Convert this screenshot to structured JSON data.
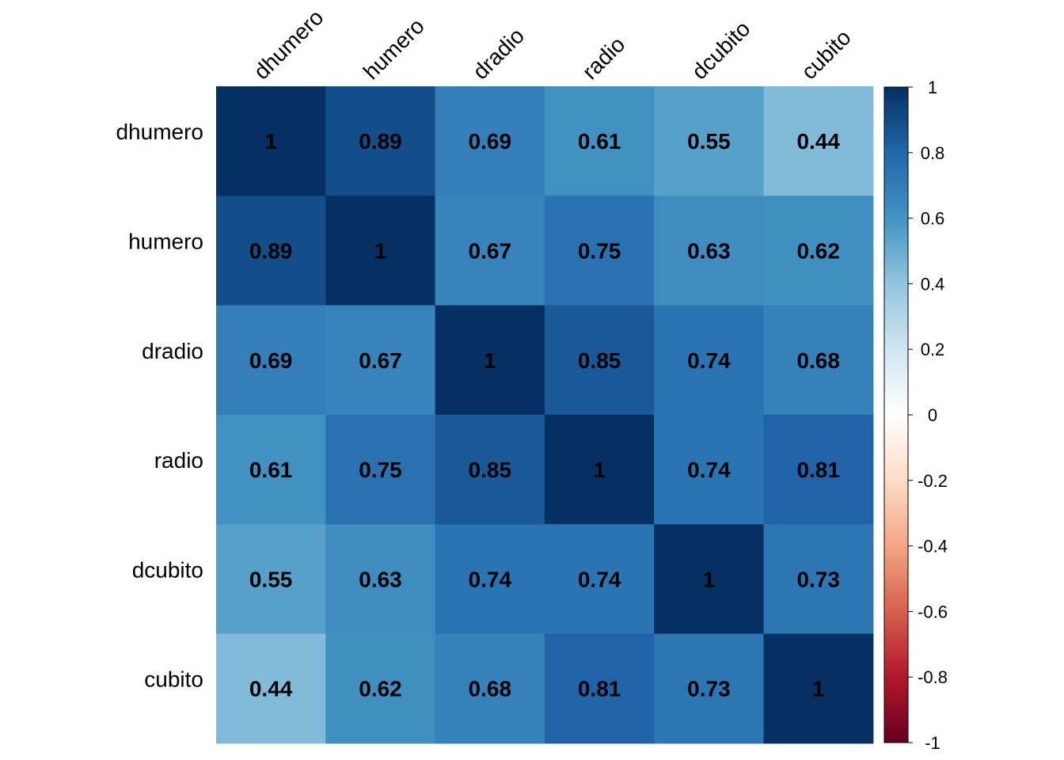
{
  "chart_data": {
    "type": "heatmap",
    "title": "",
    "variables": [
      "dhumero",
      "humero",
      "dradio",
      "radio",
      "dcubito",
      "cubito"
    ],
    "matrix": [
      [
        1,
        0.89,
        0.69,
        0.61,
        0.55,
        0.44
      ],
      [
        0.89,
        1,
        0.67,
        0.75,
        0.63,
        0.62
      ],
      [
        0.69,
        0.67,
        1,
        0.85,
        0.74,
        0.68
      ],
      [
        0.61,
        0.75,
        0.85,
        1,
        0.74,
        0.81
      ],
      [
        0.55,
        0.63,
        0.74,
        0.74,
        1,
        0.73
      ],
      [
        0.44,
        0.62,
        0.68,
        0.81,
        0.73,
        1
      ]
    ],
    "colorbar": {
      "range": [
        -1,
        1
      ],
      "ticks": [
        "1",
        "0.8",
        "0.6",
        "0.4",
        "0.2",
        "0",
        "-0.2",
        "-0.4",
        "-0.6",
        "-0.8",
        "-1"
      ],
      "tick_values": [
        1,
        0.8,
        0.6,
        0.4,
        0.2,
        0,
        -0.2,
        -0.4,
        -0.6,
        -0.8,
        -1
      ],
      "colors": [
        "#67001F",
        "#B2182B",
        "#D6604D",
        "#F4A582",
        "#FDDBC7",
        "#FFFFFF",
        "#D1E5F0",
        "#92C5DE",
        "#4393C3",
        "#2166AC",
        "#053061"
      ],
      "placement": "right"
    },
    "grid": false
  }
}
